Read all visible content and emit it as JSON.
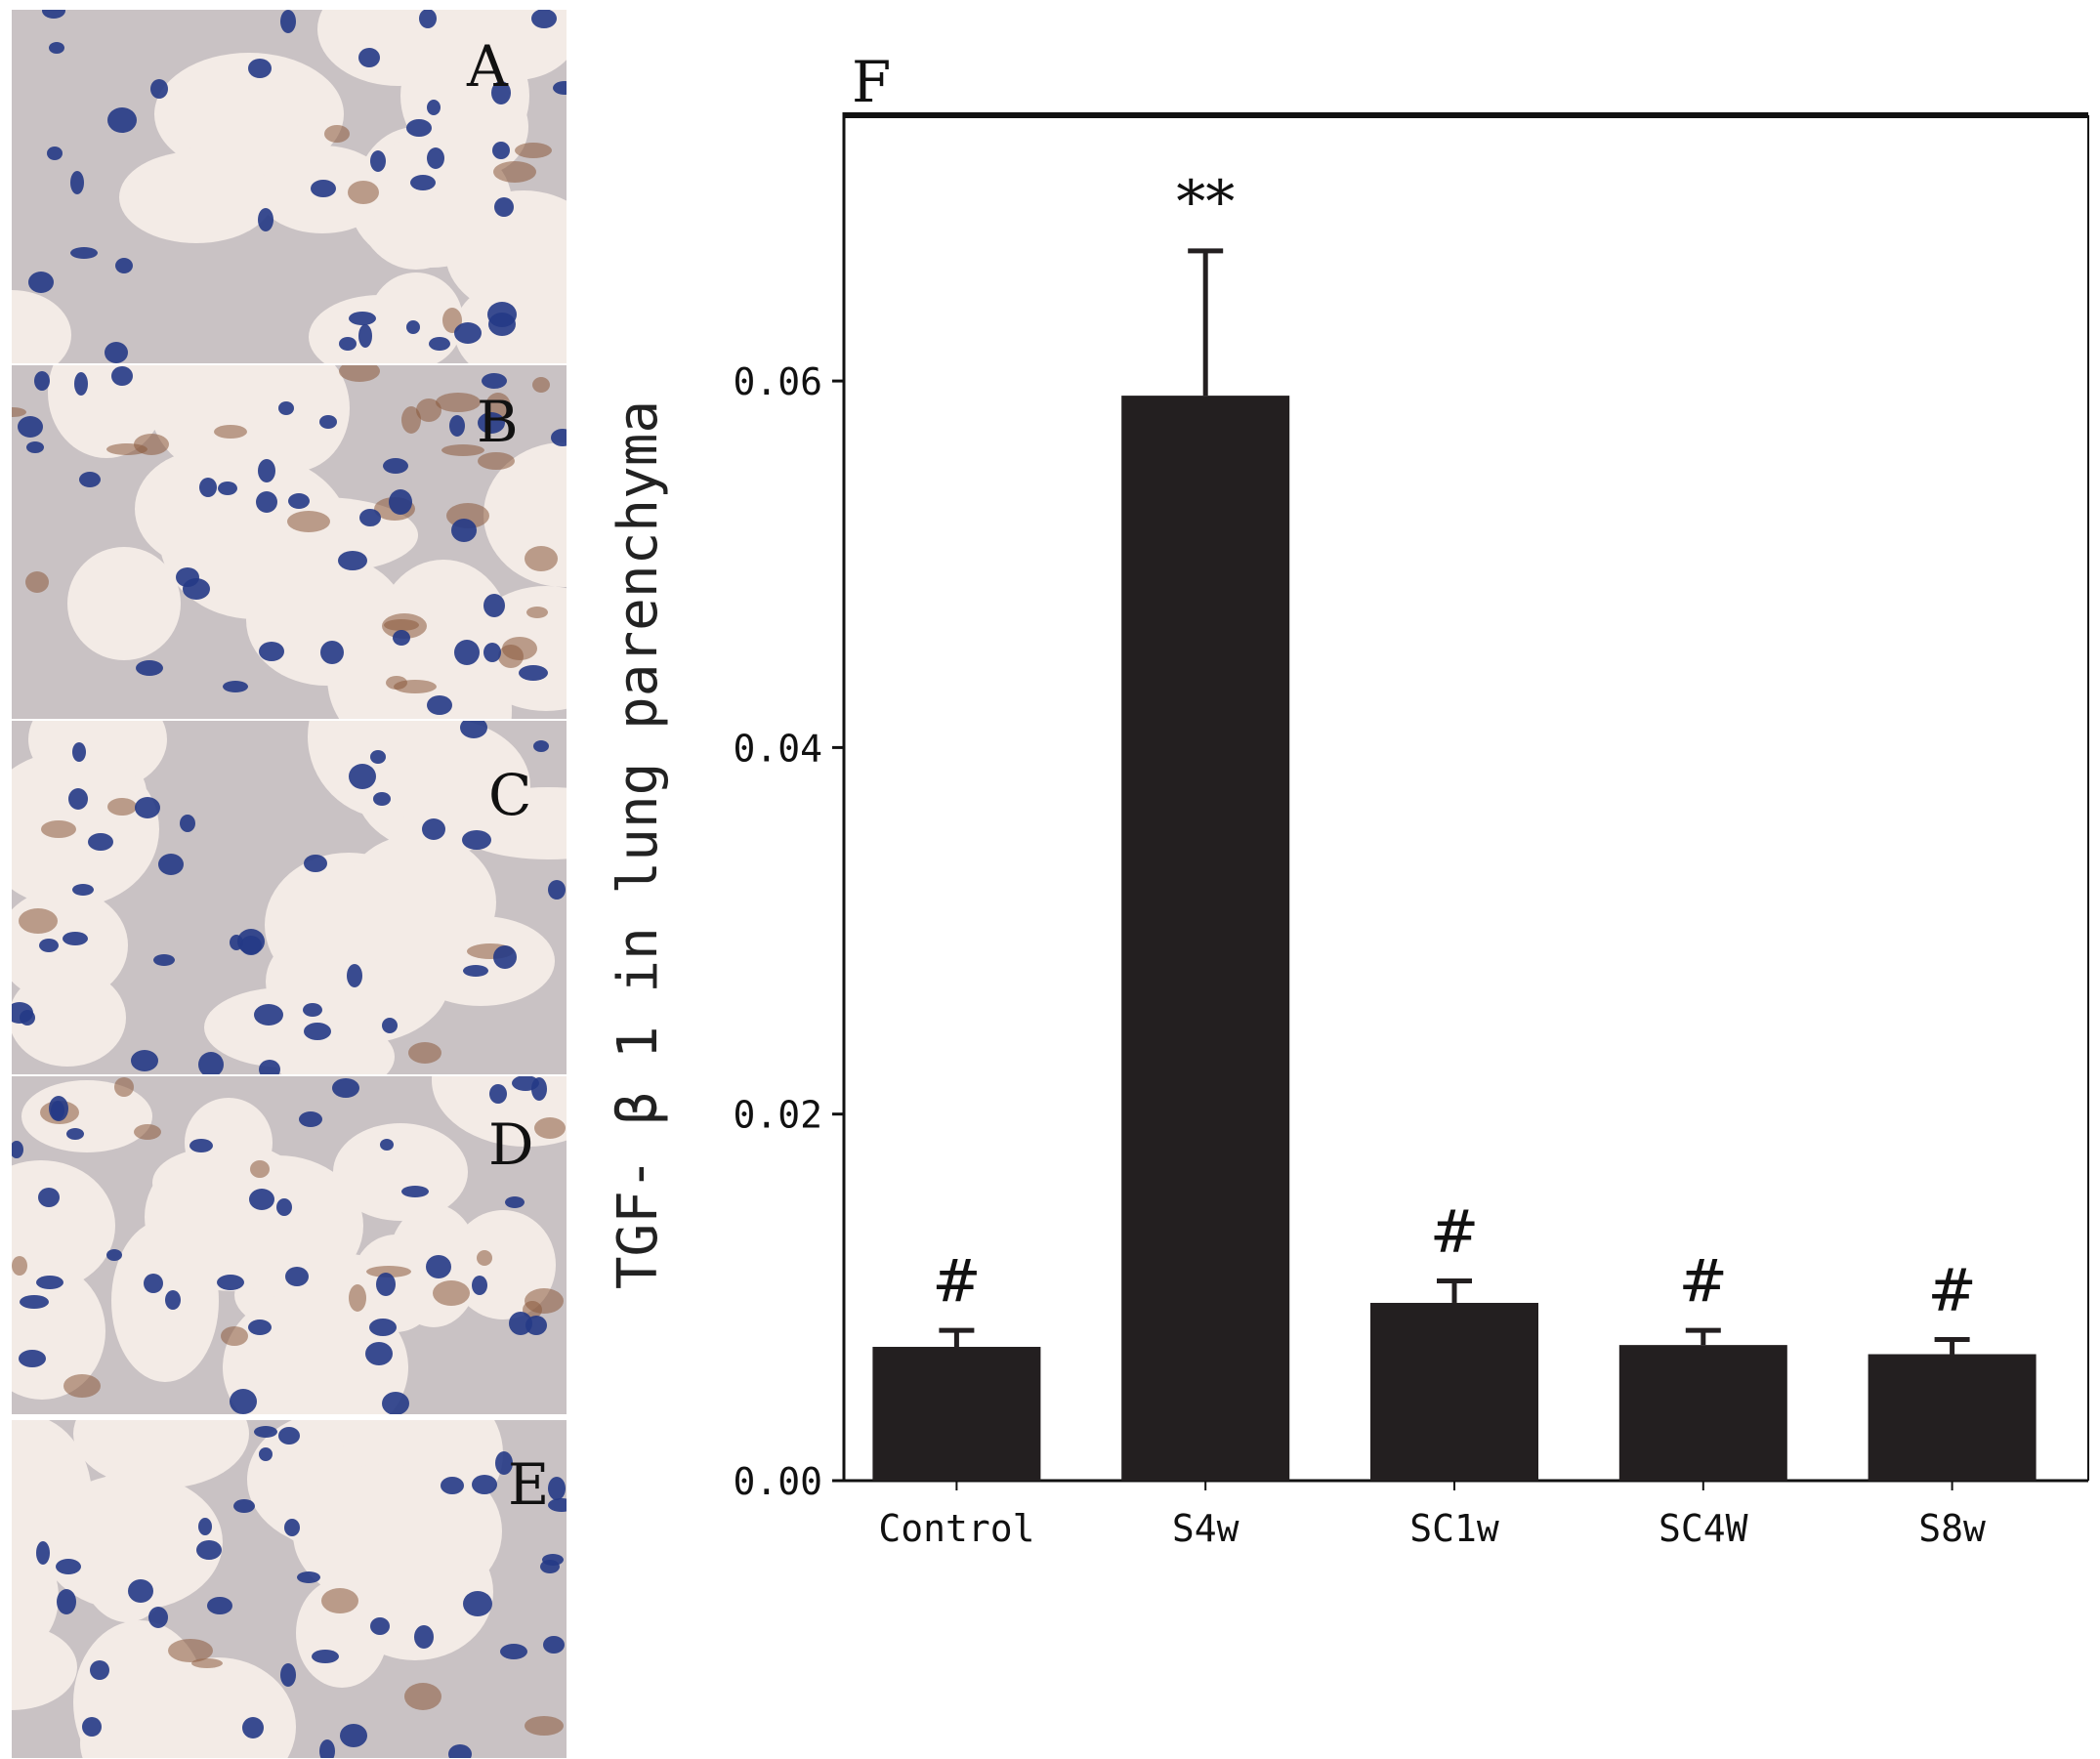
{
  "panels": [
    {
      "letter": "A",
      "stain": "low"
    },
    {
      "letter": "B",
      "stain": "high"
    },
    {
      "letter": "C",
      "stain": "low"
    },
    {
      "letter": "D",
      "stain": "medium"
    },
    {
      "letter": "E",
      "stain": "low"
    }
  ],
  "colors": {
    "background": "#f3ebe6",
    "tissue": "#c9c2c4",
    "nuclei": "#253a86",
    "brown_stain": "#8a5a3c",
    "bars": "#231f20"
  },
  "chart_data": {
    "type": "bar",
    "panel_letter": "F",
    "categories": [
      "Control",
      "S4w",
      "SC1w",
      "SC4W",
      "S8w"
    ],
    "values": [
      0.0073,
      0.0592,
      0.0097,
      0.0074,
      0.0069
    ],
    "errors": [
      0.0009,
      0.0079,
      0.0012,
      0.0008,
      0.0008
    ],
    "annotations": [
      "#",
      "**",
      "#",
      "#",
      "#"
    ],
    "ylabel": "TGF- β 1 in lung parenchyma",
    "xlabel": "",
    "ylim": [
      0,
      0.0745
    ],
    "yticks": [
      0.0,
      0.02,
      0.04,
      0.06
    ],
    "ytick_labels": [
      "0.00",
      "0.02",
      "0.04",
      "0.06"
    ],
    "grid": false
  }
}
